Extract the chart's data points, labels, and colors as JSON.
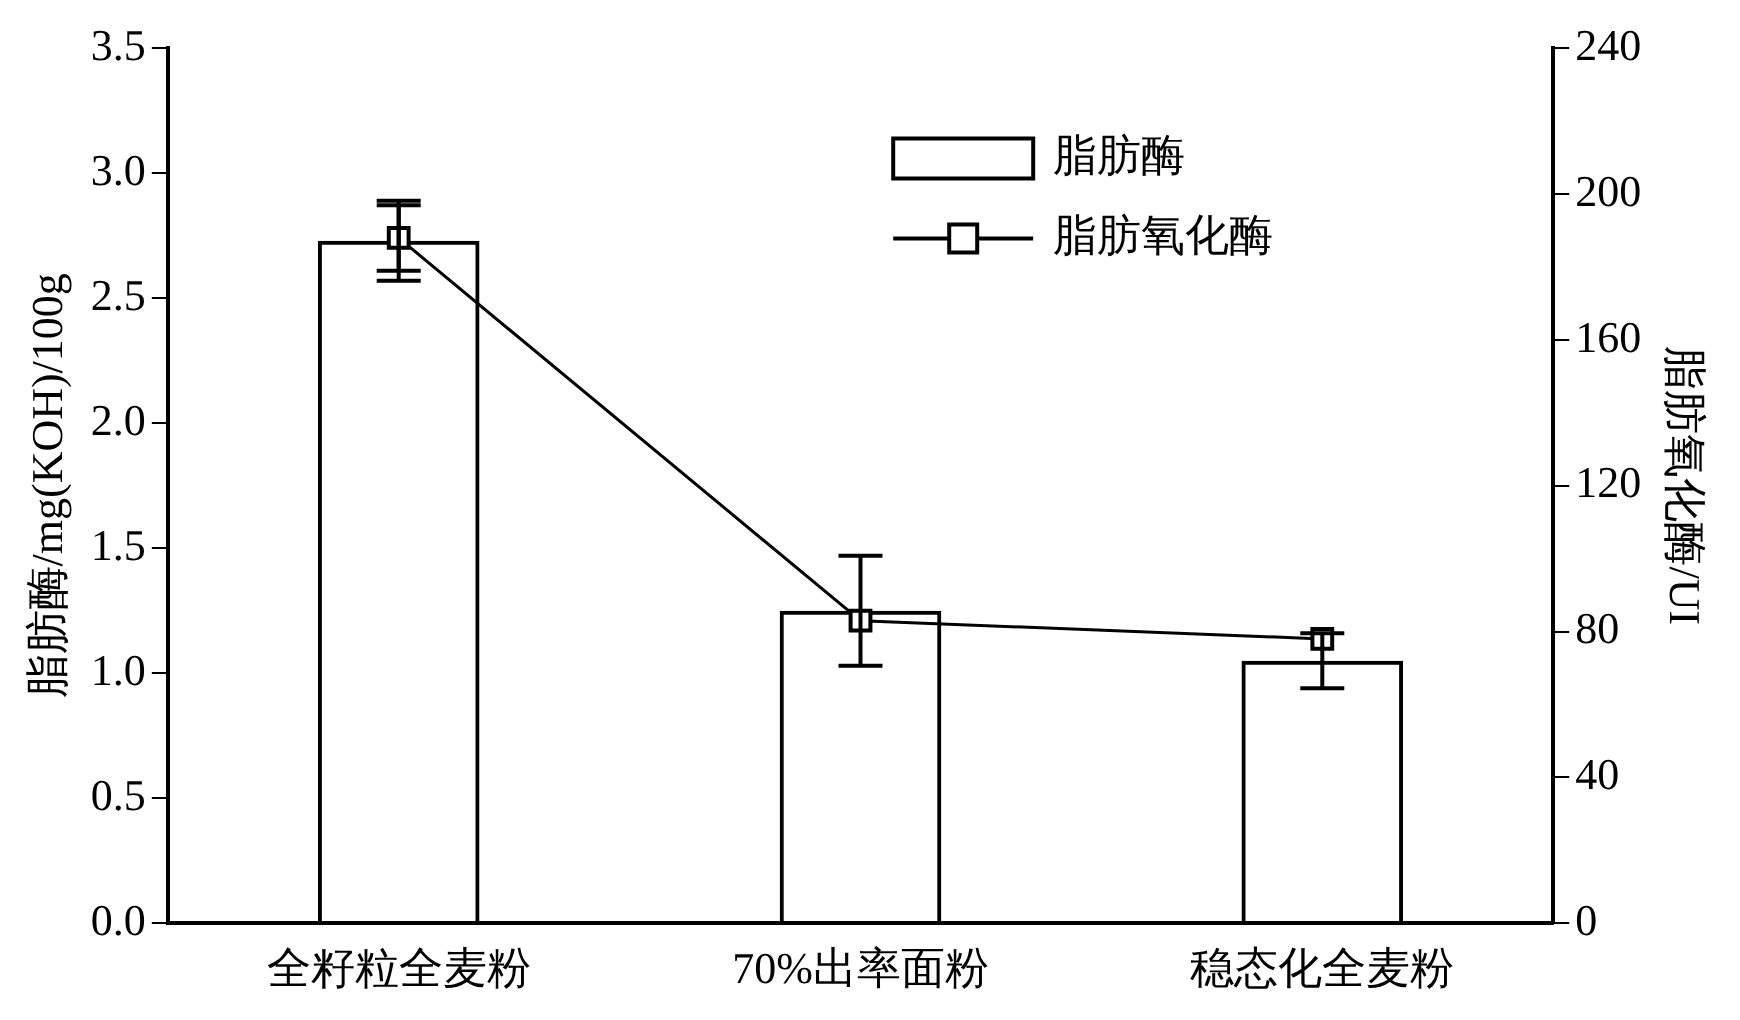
{
  "chart_data": {
    "type": "bar",
    "xlabel": null,
    "ylabel": "脂肪酶/mg(KOH)/100g",
    "y2label": "脂肪氧化酶/UI",
    "categories": [
      "全籽粒全麦粉",
      "70%出率面粉",
      "稳态化全麦粉"
    ],
    "series": [
      {
        "name": "脂肪酶",
        "color": "#000000",
        "values": [
          2.73,
          1.25,
          1.05
        ],
        "errors": [
          0.16,
          0.22,
          0.11
        ]
      },
      {
        "name": "脂肪氧化酶",
        "type": "line",
        "axis": "y2",
        "color": "#000000",
        "marker": "square",
        "values": [
          188,
          83,
          78
        ],
        "errors": [
          9,
          null,
          null
        ]
      }
    ],
    "ylim": [
      0,
      3.5
    ],
    "yticks": [
      {
        "value": 0,
        "label": "0.0"
      },
      0.5,
      {
        "value": 1,
        "label": "1.0"
      },
      1.5,
      {
        "value": 2,
        "label": "2.0"
      },
      2.5,
      {
        "value": 3,
        "label": "3.0"
      },
      3.5
    ],
    "y2lim": [
      0,
      240
    ],
    "y2ticks": [
      0,
      40,
      80,
      120,
      160,
      200,
      240
    ],
    "grid": false,
    "legend": "top right"
  }
}
